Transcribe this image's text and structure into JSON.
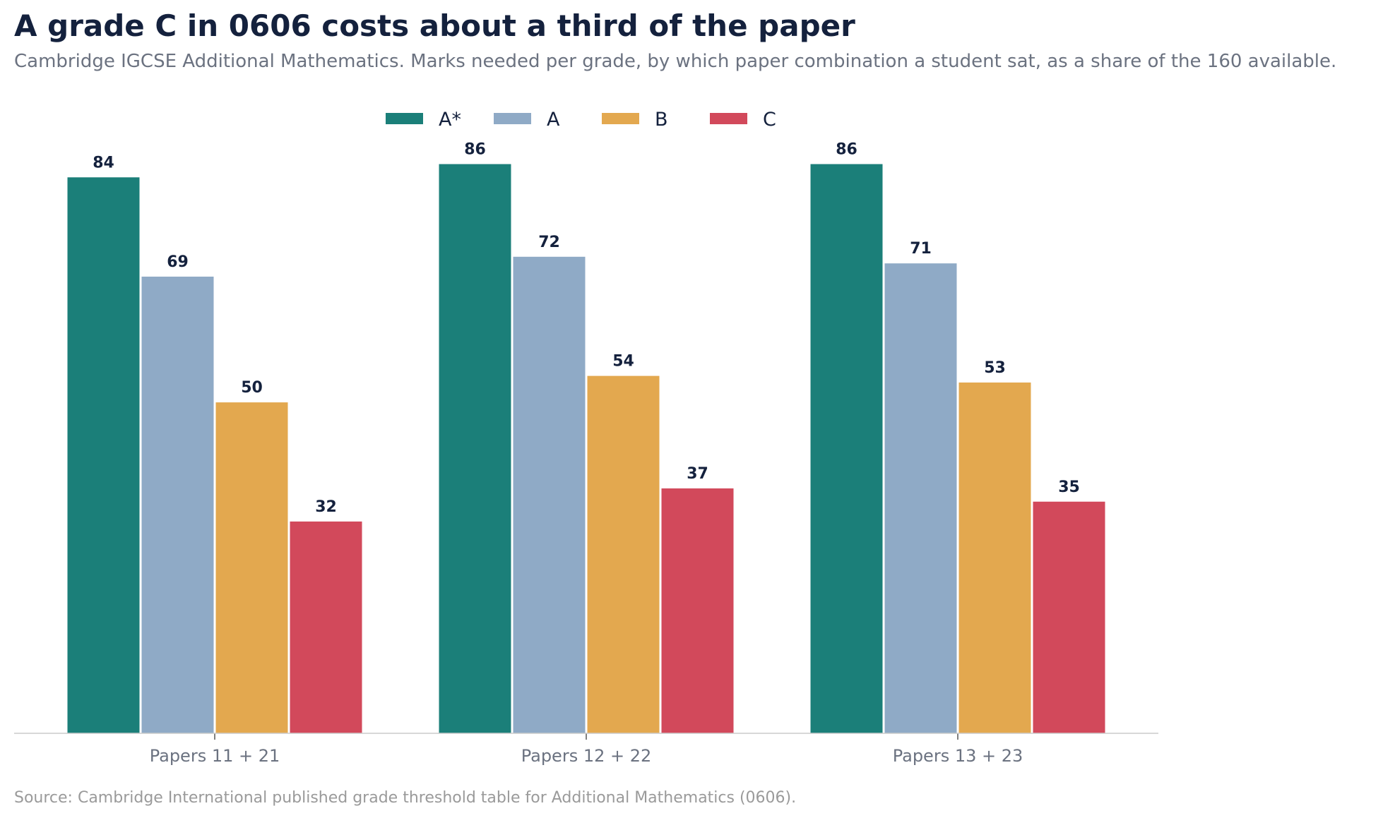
{
  "title": "A grade C in 0606 costs about a third of the paper",
  "subtitle": "Cambridge IGCSE Additional Mathematics. Marks needed per grade, by which paper combination a student sat, as a share of the 160 available.",
  "source": "Source: Cambridge International published grade threshold table for Additional Mathematics (0606).",
  "chart_data": {
    "type": "bar",
    "categories": [
      "Papers 11 + 21",
      "Papers 12 + 22",
      "Papers 13 + 23"
    ],
    "series": [
      {
        "name": "A*",
        "color": "#1b7f79",
        "values": [
          84,
          86,
          86
        ]
      },
      {
        "name": "A",
        "color": "#8faac6",
        "values": [
          69,
          72,
          71
        ]
      },
      {
        "name": "B",
        "color": "#e3a84f",
        "values": [
          50,
          54,
          53
        ]
      },
      {
        "name": "C",
        "color": "#d2495b",
        "values": [
          32,
          37,
          35
        ]
      }
    ],
    "ylim": [
      0,
      90
    ],
    "legend_position": "top-center",
    "data_labels": true,
    "grid": false,
    "y_axis_visible": false
  }
}
